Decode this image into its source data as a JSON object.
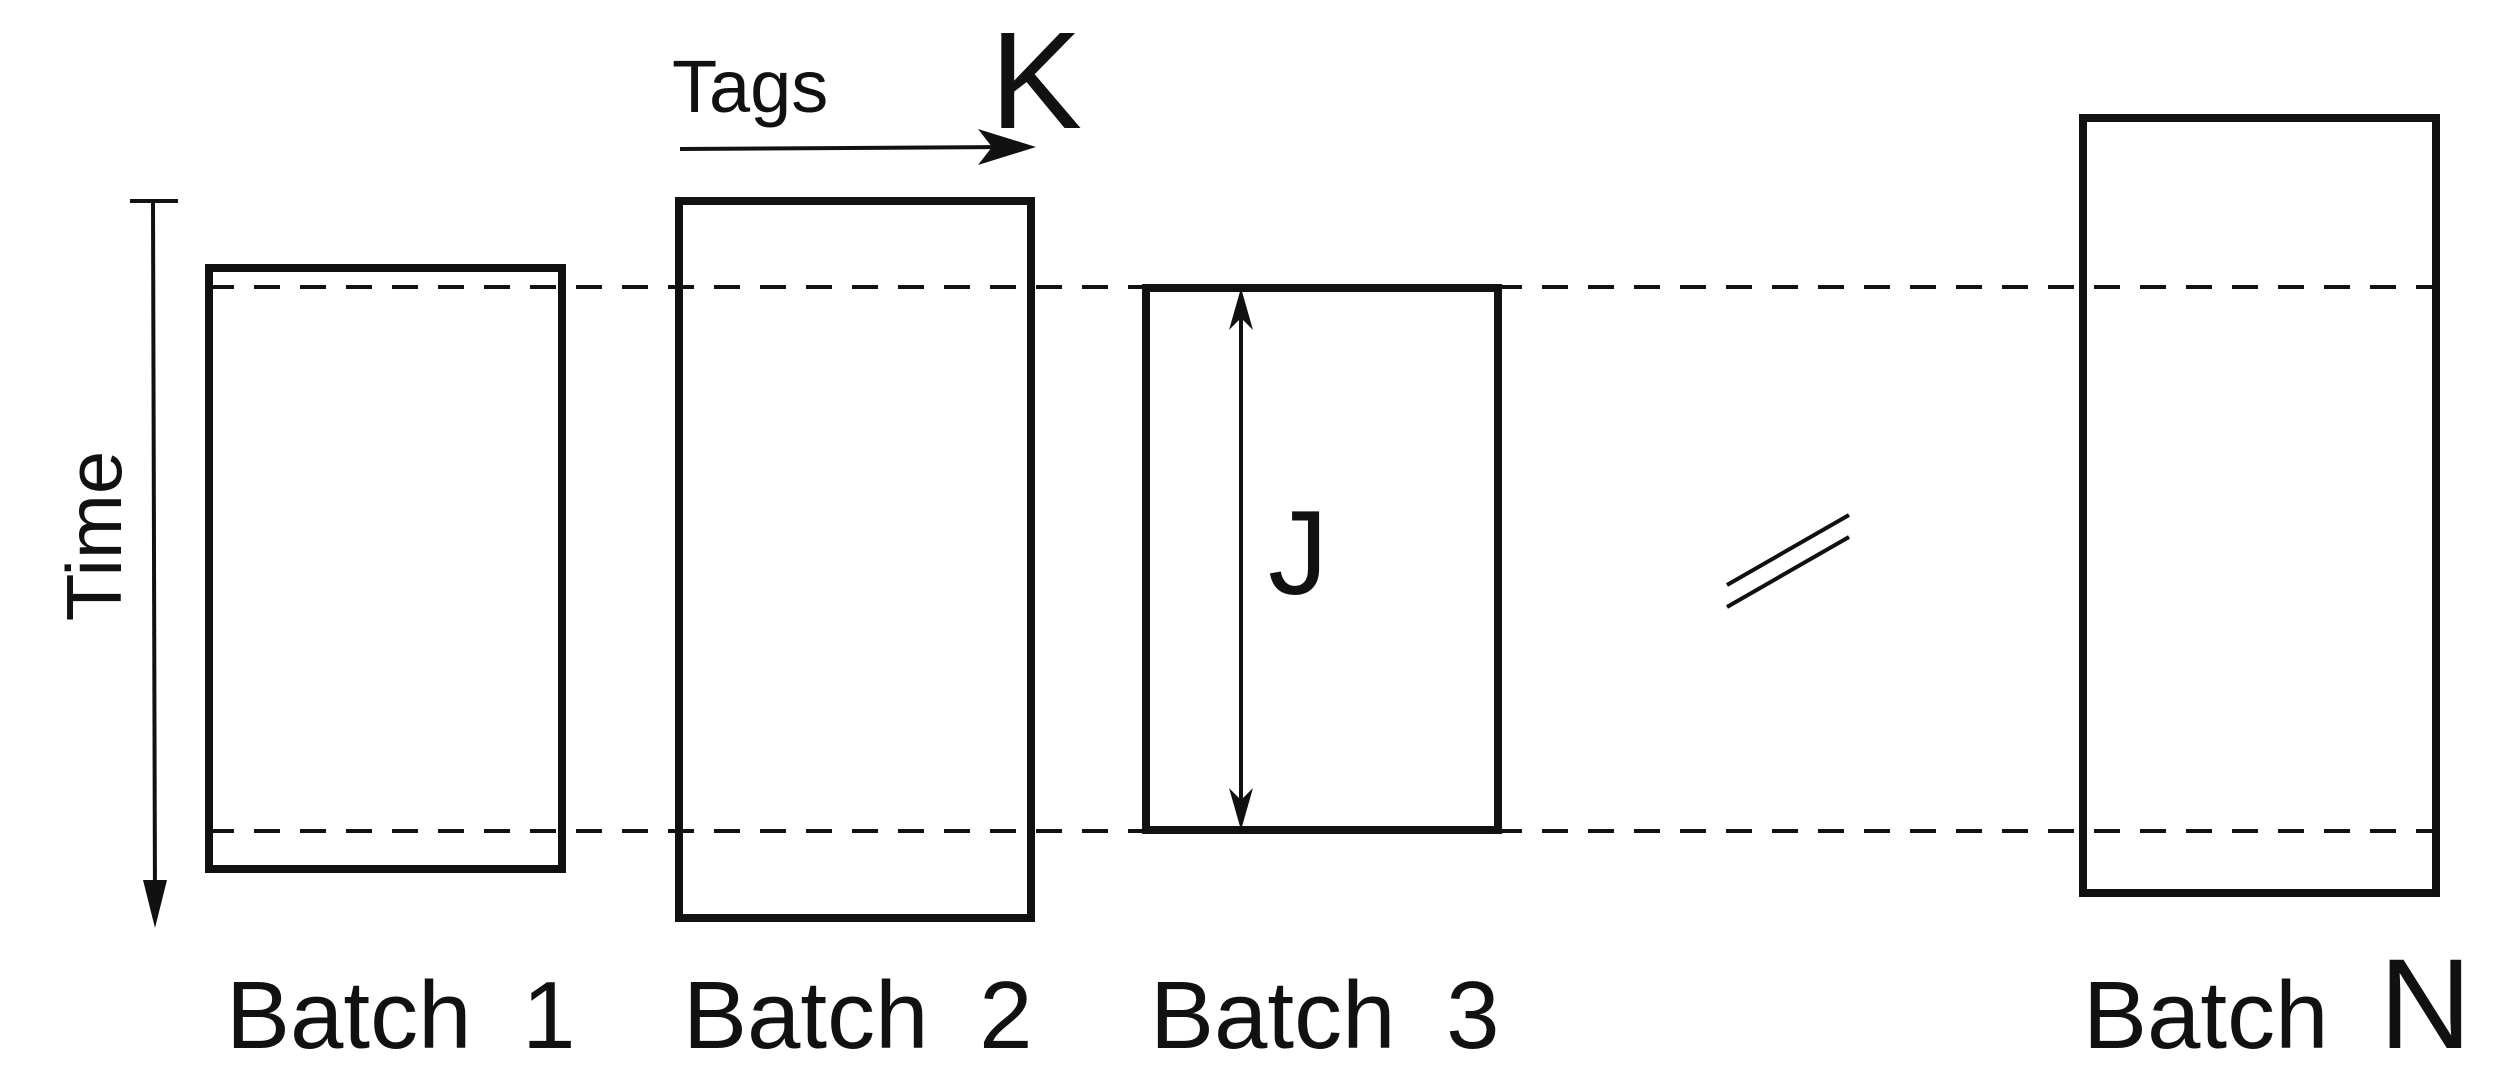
{
  "diagram": {
    "time_label": "Time",
    "tags_label": "Tags",
    "k_label": "K",
    "j_label": "J",
    "batches": [
      {
        "prefix": "Batch",
        "suffix": "1"
      },
      {
        "prefix": "Batch",
        "suffix": "2"
      },
      {
        "prefix": "Batch",
        "suffix": "3"
      },
      {
        "prefix": "Batch",
        "suffix": "N"
      }
    ]
  }
}
